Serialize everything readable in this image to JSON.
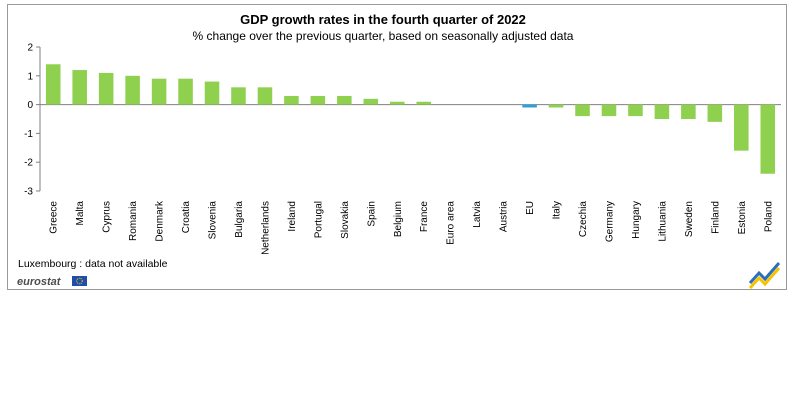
{
  "chart_data": {
    "type": "bar",
    "title": "GDP  growth rates in the fourth quarter of  2022",
    "subtitle": "% change  over  the previous  quarter,  based on seasonally adjusted data",
    "xlabel": "",
    "ylabel": "",
    "ylim": [
      -3,
      2
    ],
    "yticks": [
      "2",
      "1",
      "0",
      "-1",
      "-2",
      "-3"
    ],
    "categories": [
      "Greece",
      "Malta",
      "Cyprus",
      "Romania",
      "Denmark",
      "Croatia",
      "Slovenia",
      "Bulgaria",
      "Netherlands",
      "Ireland",
      "Portugal",
      "Slovakia",
      "Spain",
      "Belgium",
      "France",
      "Euro area",
      "Latvia",
      "Austria",
      "EU",
      "Italy",
      "Czechia",
      "Germany",
      "Hungary",
      "Lithuania",
      "Sweden",
      "Finland",
      "Estonia",
      "Poland"
    ],
    "values": [
      1.4,
      1.2,
      1.1,
      1.0,
      0.9,
      0.9,
      0.8,
      0.6,
      0.6,
      0.3,
      0.3,
      0.3,
      0.2,
      0.1,
      0.1,
      0.0,
      0.0,
      0.0,
      -0.1,
      -0.1,
      -0.4,
      -0.4,
      -0.4,
      -0.5,
      -0.5,
      -0.6,
      -1.6,
      -2.4
    ],
    "highlight": [
      "EU"
    ],
    "colors": {
      "bar": "#8fd14f",
      "highlight": "#2f9fd8",
      "axis": "#808080"
    }
  },
  "footnote": "Luxembourg : data not available",
  "brand": {
    "name": "eurostat",
    "icon": "eu-flag-icon"
  },
  "logo": {
    "icon": "eurostat-chevron-icon",
    "colors": [
      "#f5c300",
      "#2b6fb8"
    ]
  }
}
